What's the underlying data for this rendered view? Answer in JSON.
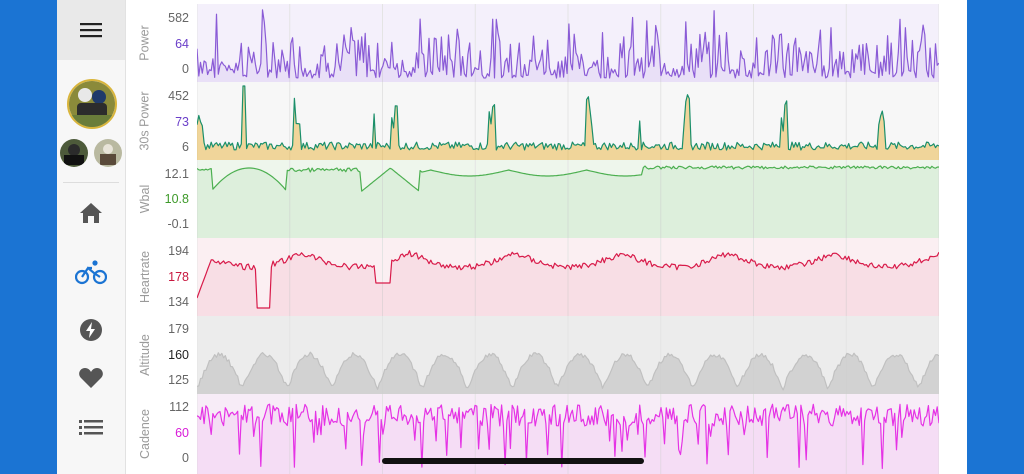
{
  "colors": {
    "frame": "#1b74d3",
    "accent": "#1b74d3",
    "power": "#8a5bd6",
    "wbal": "#4caf50",
    "heartrate": "#d81b4a",
    "altitude": "#c8c8c8",
    "cadence": "#e533e5"
  },
  "sidebar": {
    "menu_icon": "hamburger-menu-icon",
    "nav": [
      {
        "name": "home",
        "icon": "home-icon"
      },
      {
        "name": "rides",
        "icon": "bicycle-icon",
        "active": true
      },
      {
        "name": "power",
        "icon": "lightning-icon"
      },
      {
        "name": "health",
        "icon": "heart-icon"
      },
      {
        "name": "list",
        "icon": "list-icon"
      }
    ]
  },
  "panels": [
    {
      "key": "power",
      "label": "Power",
      "ticks": [
        "582",
        "64",
        "0"
      ],
      "mid_color": "#6b3fc9"
    },
    {
      "key": "power30",
      "label": "30s Power",
      "ticks": [
        "452",
        "73",
        "6"
      ],
      "mid_color": "#6b3fc9"
    },
    {
      "key": "wbal",
      "label": "Wbal",
      "ticks": [
        "12.1",
        "10.8",
        "-0.1"
      ],
      "mid_color": "#3e9a2a"
    },
    {
      "key": "heartrate",
      "label": "Heartrate",
      "ticks": [
        "194",
        "178",
        "134"
      ],
      "mid_color": "#c8173f"
    },
    {
      "key": "altitude",
      "label": "Altitude",
      "ticks": [
        "179",
        "160",
        "125"
      ],
      "mid_color": "#222222"
    },
    {
      "key": "cadence",
      "label": "Cadence",
      "ticks": [
        "112",
        "60",
        "0"
      ],
      "mid_color": "#d81bd8"
    }
  ]
}
